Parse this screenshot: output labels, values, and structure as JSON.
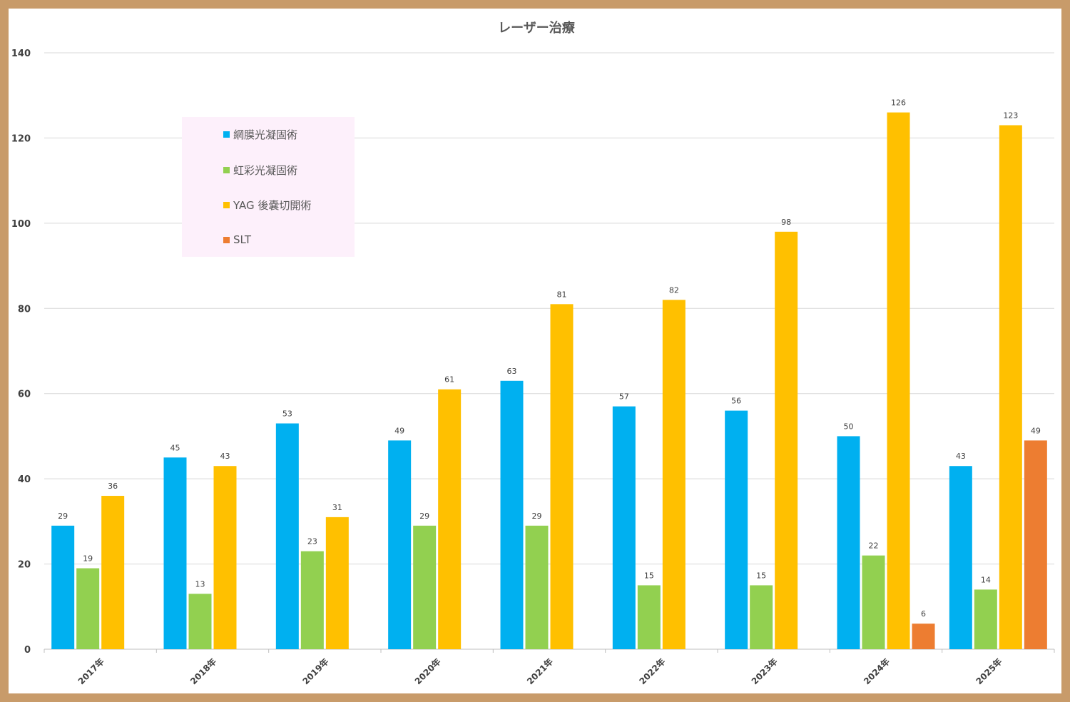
{
  "chart_data": {
    "type": "bar",
    "title": "レーザー治療",
    "categories": [
      "2017年",
      "2018年",
      "2019年",
      "2020年",
      "2021年",
      "2022年",
      "2023年",
      "2024年",
      "2025年"
    ],
    "series": [
      {
        "name": "網膜光凝固術",
        "color": "#00b0f0",
        "values": [
          29,
          45,
          53,
          49,
          63,
          57,
          56,
          50,
          43
        ]
      },
      {
        "name": "虹彩光凝固術",
        "color": "#92d050",
        "values": [
          19,
          13,
          23,
          29,
          29,
          15,
          15,
          22,
          14
        ]
      },
      {
        "name": "YAG 後嚢切開術",
        "color": "#ffc000",
        "values": [
          36,
          43,
          31,
          61,
          81,
          82,
          98,
          126,
          123
        ]
      },
      {
        "name": "SLT",
        "color": "#ed7d31",
        "values": [
          null,
          null,
          null,
          null,
          null,
          null,
          null,
          6,
          49
        ]
      }
    ],
    "ylim": [
      0,
      140
    ],
    "yticks": [
      0,
      20,
      40,
      60,
      80,
      100,
      120,
      140
    ],
    "grid": true,
    "legend": "upper-left inside plot"
  }
}
